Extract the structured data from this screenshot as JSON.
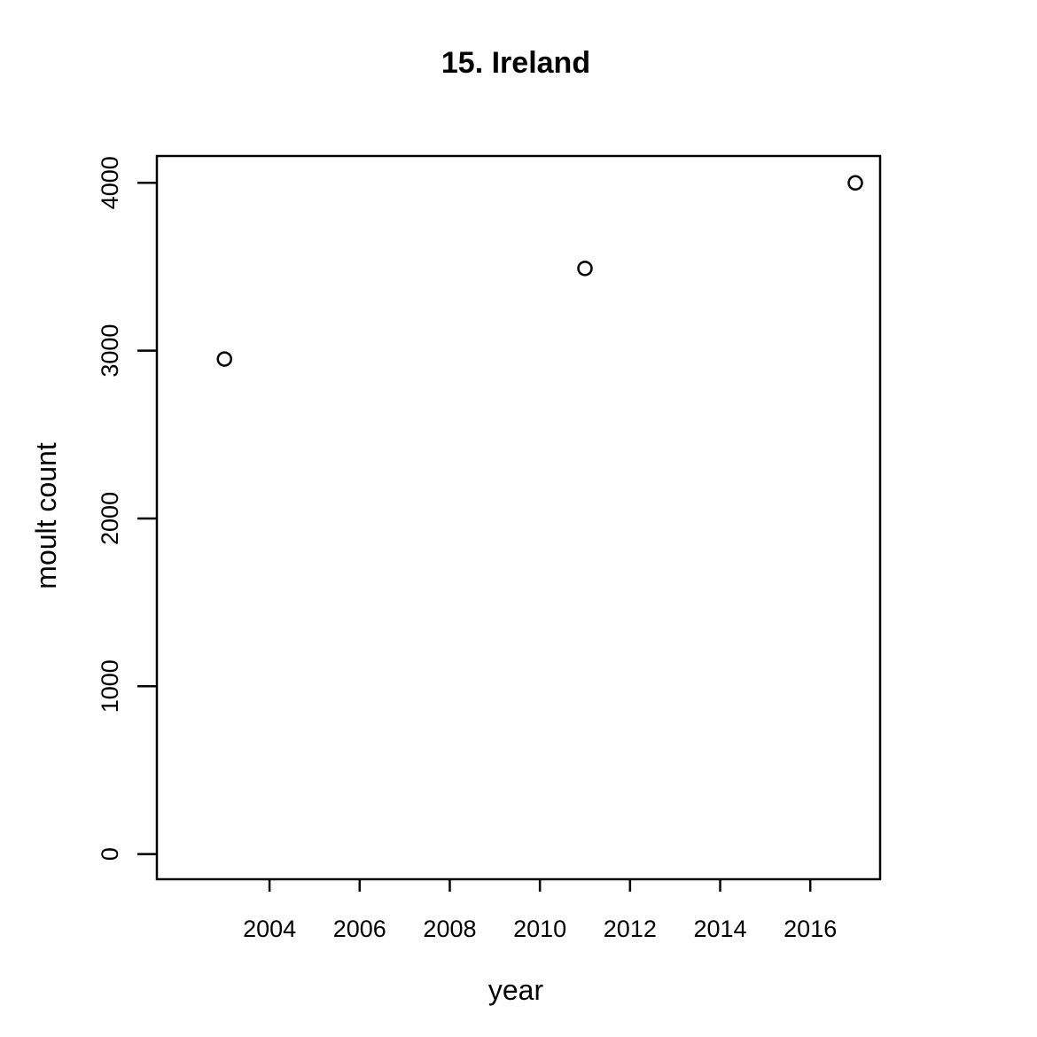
{
  "chart_data": {
    "type": "scatter",
    "title": "15. Ireland",
    "xlabel": "year",
    "ylabel": "moult count",
    "x": [
      2003,
      2011,
      2017
    ],
    "y": [
      2950,
      3490,
      4000
    ],
    "xlim": [
      2001.5,
      2017.55
    ],
    "ylim": [
      -150,
      4160
    ],
    "xticks": [
      "2004",
      "2006",
      "2008",
      "2010",
      "2012",
      "2014",
      "2016"
    ],
    "yticks": [
      "0",
      "1000",
      "2000",
      "3000",
      "4000"
    ],
    "marker": "open-circle",
    "colors": {
      "marker": "#000000",
      "axis": "#000000",
      "background": "#ffffff"
    },
    "grid": false,
    "legend": "none"
  }
}
